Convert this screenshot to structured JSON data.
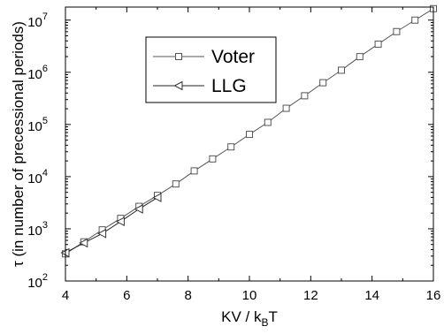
{
  "chart_data": {
    "type": "line",
    "xlabel": {
      "main": "KV / k",
      "sub": "B",
      "tail": "T"
    },
    "ylabel": "τ (in number of precessional periods)",
    "xlim": [
      4,
      16
    ],
    "ylim_log10": [
      2,
      7.25
    ],
    "y_scale": "log",
    "x_ticks": [
      {
        "value": 4,
        "label": "4"
      },
      {
        "value": 6,
        "label": "6"
      },
      {
        "value": 8,
        "label": "8"
      },
      {
        "value": 10,
        "label": "10"
      },
      {
        "value": 12,
        "label": "12"
      },
      {
        "value": 14,
        "label": "14"
      },
      {
        "value": 16,
        "label": "16"
      }
    ],
    "y_ticks": [
      {
        "value": 2,
        "base": "10",
        "exp": "2"
      },
      {
        "value": 3,
        "base": "10",
        "exp": "3"
      },
      {
        "value": 4,
        "base": "10",
        "exp": "4"
      },
      {
        "value": 5,
        "base": "10",
        "exp": "5"
      },
      {
        "value": 6,
        "base": "10",
        "exp": "6"
      },
      {
        "value": 7,
        "base": "10",
        "exp": "7"
      }
    ],
    "legend_position": "upper-left",
    "series": [
      {
        "name": "Voter",
        "marker": "square",
        "x": [
          4.0,
          4.6,
          5.2,
          5.8,
          6.4,
          7.0,
          7.6,
          8.2,
          8.8,
          9.4,
          10.0,
          10.6,
          11.2,
          11.8,
          12.4,
          13.0,
          13.6,
          14.2,
          14.8,
          15.4,
          16.0
        ],
        "log10_y": [
          2.52,
          2.75,
          2.98,
          3.2,
          3.43,
          3.64,
          3.86,
          4.11,
          4.34,
          4.57,
          4.81,
          5.04,
          5.31,
          5.55,
          5.8,
          6.04,
          6.3,
          6.54,
          6.78,
          7.0,
          7.22
        ]
      },
      {
        "name": "LLG",
        "marker": "triangle-left",
        "x": [
          4.0,
          4.6,
          5.2,
          5.8,
          6.4,
          7.0
        ],
        "log10_y": [
          2.54,
          2.73,
          2.91,
          3.14,
          3.38,
          3.6
        ]
      }
    ]
  }
}
